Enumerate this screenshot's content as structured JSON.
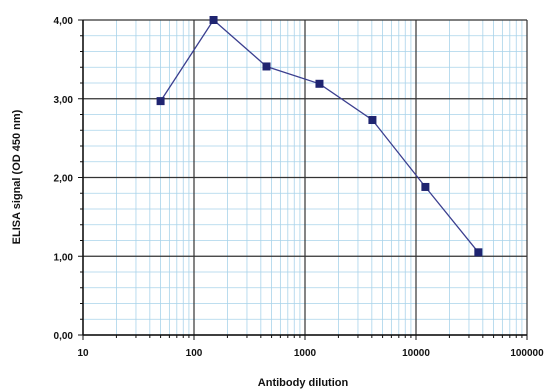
{
  "chart_data": {
    "type": "line",
    "title": "",
    "xlabel": "Antibody dilution",
    "ylabel": "ELISA signal (OD 450 nm)",
    "x_scale": "log",
    "xlim": [
      10,
      100000
    ],
    "ylim": [
      0,
      4
    ],
    "grid": true,
    "x_tick_labels": [
      "10",
      "100",
      "1000",
      "10000",
      "100000"
    ],
    "y_tick_labels": [
      "0,00",
      "1,00",
      "2,00",
      "3,00",
      "4,00"
    ],
    "series": [
      {
        "color": "#3b3f8f",
        "marker_color": "#1f2470",
        "x": [
          50,
          150,
          450,
          1350,
          4050,
          12150,
          36450
        ],
        "y": [
          2.97,
          4.0,
          3.41,
          3.19,
          2.73,
          1.88,
          1.05
        ]
      }
    ]
  }
}
